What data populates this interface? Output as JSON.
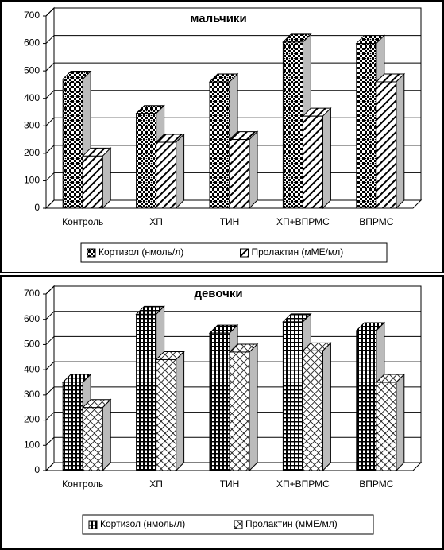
{
  "chart_data": [
    {
      "type": "bar",
      "title": "мальчики",
      "categories": [
        "Контроль",
        "ХП",
        "ТИН",
        "ХП+ВПРМС",
        "ВПРМС"
      ],
      "series": [
        {
          "name": "Кортизол (нмоль/л)",
          "color": "#000000",
          "pattern": "checker",
          "values": [
            470,
            345,
            460,
            605,
            600
          ]
        },
        {
          "name": "Пролактин (мМЕ/мл)",
          "color": "#000000",
          "pattern": "diagonal",
          "values": [
            190,
            240,
            250,
            335,
            460
          ]
        }
      ],
      "ylim": [
        0,
        700
      ],
      "yticks": [
        0,
        100,
        200,
        300,
        400,
        500,
        600,
        700
      ],
      "grid": true,
      "legend": "bottom"
    },
    {
      "type": "bar",
      "title": "девочки",
      "categories": [
        "Контроль",
        "ХП",
        "ТИН",
        "ХП+ВПРМС",
        "ВПРМС"
      ],
      "series": [
        {
          "name": "Кортизол (нмоль/л)",
          "color": "#000000",
          "pattern": "grid",
          "values": [
            350,
            620,
            545,
            590,
            555
          ]
        },
        {
          "name": "Пролактин (мМЕ/мл)",
          "color": "#000000",
          "pattern": "crosshatch",
          "values": [
            250,
            440,
            470,
            475,
            350
          ]
        }
      ],
      "ylim": [
        0,
        700
      ],
      "yticks": [
        0,
        100,
        200,
        300,
        400,
        500,
        600,
        700
      ],
      "grid": true,
      "legend": "bottom"
    }
  ]
}
